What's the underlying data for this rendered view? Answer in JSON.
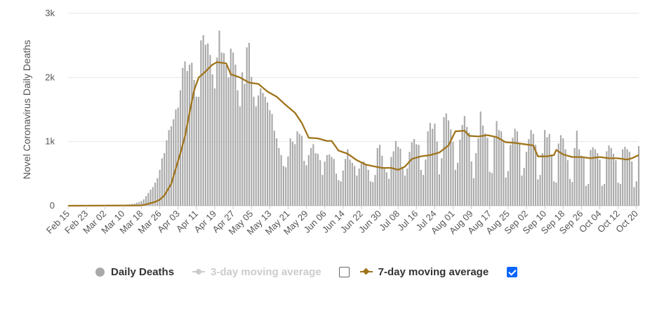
{
  "colors": {
    "bars": "#a9a9a9",
    "avg7": "#a0741c",
    "avg3_disabled": "#cccccc",
    "checkbox_checked": "#0a66ff"
  },
  "legend": {
    "daily": "Daily Deaths",
    "avg3": "3-day moving average",
    "avg7": "7-day moving average",
    "avg3_checked": false,
    "avg7_checked": true
  },
  "chart_data": {
    "type": "bar",
    "title": "",
    "ylabel": "Novel Coronavirus Daily Deaths",
    "xlabel": "",
    "ylim": [
      0,
      3000
    ],
    "yticks": [
      {
        "value": 0,
        "label": "0"
      },
      {
        "value": 1000,
        "label": "1k"
      },
      {
        "value": 2000,
        "label": "2k"
      },
      {
        "value": 3000,
        "label": "3k"
      }
    ],
    "x_tick_labels": [
      "Feb 15",
      "Feb 23",
      "Mar 02",
      "Mar 10",
      "Mar 18",
      "Mar 26",
      "Apr 03",
      "Apr 11",
      "Apr 19",
      "Apr 27",
      "May 05",
      "May 13",
      "May 21",
      "May 29",
      "Jun 06",
      "Jun 14",
      "Jun 22",
      "Jun 30",
      "Jul 08",
      "Jul 16",
      "Jul 24",
      "Aug 01",
      "Aug 09",
      "Aug 17",
      "Aug 25",
      "Sep 02",
      "Sep 10",
      "Sep 18",
      "Sep 26",
      "Oct 04",
      "Oct 12",
      "Oct 20"
    ],
    "x_tick_every_days": 8,
    "series": [
      {
        "name": "Daily Deaths",
        "type": "bar",
        "start": "Feb 15",
        "values": [
          0,
          0,
          0,
          0,
          0,
          0,
          0,
          0,
          0,
          0,
          0,
          0,
          0,
          0,
          0,
          0,
          1,
          2,
          3,
          1,
          2,
          5,
          4,
          8,
          12,
          15,
          18,
          22,
          28,
          34,
          48,
          58,
          75,
          100,
          150,
          200,
          250,
          290,
          360,
          430,
          560,
          740,
          820,
          1020,
          1180,
          1240,
          1350,
          1500,
          1530,
          1800,
          2150,
          2250,
          2100,
          2200,
          2230,
          1960,
          1700,
          1700,
          2580,
          2660,
          2510,
          2530,
          2350,
          2050,
          1830,
          2310,
          2730,
          2390,
          2380,
          2190,
          2000,
          2450,
          2390,
          2200,
          1800,
          1550,
          2080,
          1900,
          2470,
          2540,
          2010,
          1700,
          1550,
          1720,
          1830,
          1760,
          1700,
          1610,
          1490,
          1430,
          1170,
          1050,
          900,
          790,
          620,
          600,
          770,
          1050,
          1000,
          960,
          1160,
          1120,
          1090,
          700,
          630,
          790,
          900,
          960,
          820,
          810,
          710,
          480,
          690,
          790,
          800,
          760,
          730,
          500,
          400,
          380,
          550,
          730,
          880,
          720,
          670,
          620,
          470,
          580,
          660,
          690,
          650,
          560,
          380,
          370,
          480,
          900,
          950,
          780,
          600,
          520,
          420,
          760,
          850,
          1010,
          920,
          890,
          600,
          470,
          580,
          840,
          990,
          1040,
          960,
          950,
          560,
          480,
          720,
          1160,
          1290,
          1200,
          1280,
          1000,
          490,
          740,
          1380,
          1440,
          1330,
          1190,
          1000,
          560,
          670,
          1030,
          1260,
          1400,
          1230,
          1140,
          690,
          430,
          820,
          1050,
          1470,
          1250,
          1130,
          1060,
          530,
          510,
          1080,
          1320,
          1180,
          1160,
          1000,
          440,
          540,
          950,
          1060,
          1200,
          1160,
          960,
          470,
          590,
          840,
          1040,
          1180,
          1120,
          950,
          410,
          480,
          820,
          1180,
          1070,
          1120,
          800,
          380,
          360,
          970,
          1100,
          1050,
          880,
          710,
          420,
          370,
          900,
          1170,
          880,
          780,
          750,
          310,
          340,
          870,
          910,
          880,
          820,
          720,
          310,
          340,
          850,
          940,
          900,
          810,
          710,
          360,
          340,
          880,
          920,
          880,
          840,
          690,
          290,
          380,
          930
        ],
        "peak_value": 2730,
        "peak_date": "Apr 21"
      },
      {
        "name": "7-day moving average",
        "type": "line",
        "start": "Feb 15",
        "keypoints": [
          [
            "Feb 15",
            0
          ],
          [
            "Mar 18",
            5
          ],
          [
            "Mar 20",
            20
          ],
          [
            "Mar 22",
            40
          ],
          [
            "Mar 24",
            60
          ],
          [
            "Mar 26",
            95
          ],
          [
            "Mar 28",
            160
          ],
          [
            "Mar 31",
            340
          ],
          [
            "Apr 02",
            580
          ],
          [
            "Apr 04",
            820
          ],
          [
            "Apr 06",
            1080
          ],
          [
            "Apr 08",
            1450
          ],
          [
            "Apr 10",
            1800
          ],
          [
            "Apr 12",
            2000
          ],
          [
            "Apr 14",
            2060
          ],
          [
            "Apr 16",
            2130
          ],
          [
            "Apr 18",
            2200
          ],
          [
            "Apr 20",
            2240
          ],
          [
            "Apr 22",
            2230
          ],
          [
            "Apr 24",
            2220
          ],
          [
            "Apr 26",
            2050
          ],
          [
            "Apr 30",
            2000
          ],
          [
            "May 04",
            1920
          ],
          [
            "May 08",
            1900
          ],
          [
            "May 12",
            1780
          ],
          [
            "May 16",
            1700
          ],
          [
            "May 20",
            1570
          ],
          [
            "May 24",
            1450
          ],
          [
            "May 27",
            1290
          ],
          [
            "May 30",
            1060
          ],
          [
            "Jun 03",
            1050
          ],
          [
            "Jun 07",
            1010
          ],
          [
            "Jun 09",
            1010
          ],
          [
            "Jun 12",
            860
          ],
          [
            "Jun 16",
            810
          ],
          [
            "Jun 20",
            710
          ],
          [
            "Jun 24",
            640
          ],
          [
            "Jun 28",
            610
          ],
          [
            "Jul 01",
            590
          ],
          [
            "Jul 05",
            590
          ],
          [
            "Jul 08",
            560
          ],
          [
            "Jul 11",
            610
          ],
          [
            "Jul 14",
            730
          ],
          [
            "Jul 18",
            770
          ],
          [
            "Jul 22",
            790
          ],
          [
            "Jul 26",
            830
          ],
          [
            "Jul 30",
            940
          ],
          [
            "Aug 02",
            1160
          ],
          [
            "Aug 06",
            1170
          ],
          [
            "Aug 08",
            1090
          ],
          [
            "Aug 12",
            1080
          ],
          [
            "Aug 16",
            1100
          ],
          [
            "Aug 20",
            1070
          ],
          [
            "Aug 24",
            990
          ],
          [
            "Aug 28",
            980
          ],
          [
            "Sep 01",
            960
          ],
          [
            "Sep 05",
            940
          ],
          [
            "Sep 07",
            770
          ],
          [
            "Sep 11",
            770
          ],
          [
            "Sep 14",
            790
          ],
          [
            "Sep 15",
            870
          ],
          [
            "Sep 18",
            800
          ],
          [
            "Sep 22",
            760
          ],
          [
            "Sep 26",
            760
          ],
          [
            "Sep 30",
            740
          ],
          [
            "Oct 04",
            760
          ],
          [
            "Oct 08",
            740
          ],
          [
            "Oct 12",
            740
          ],
          [
            "Oct 16",
            720
          ],
          [
            "Oct 18",
            740
          ],
          [
            "Oct 21",
            790
          ]
        ]
      }
    ]
  }
}
